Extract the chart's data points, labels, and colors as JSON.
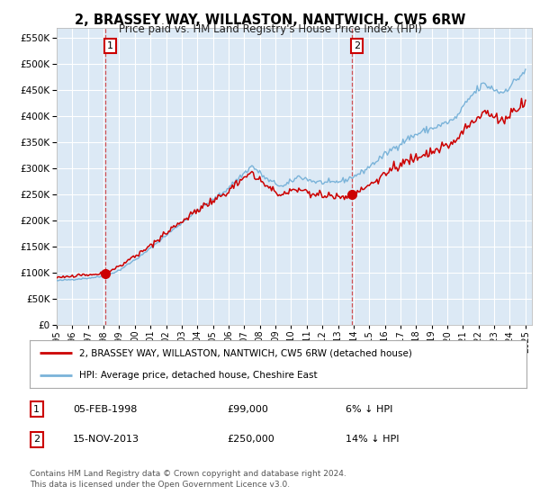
{
  "title": "2, BRASSEY WAY, WILLASTON, NANTWICH, CW5 6RW",
  "subtitle": "Price paid vs. HM Land Registry's House Price Index (HPI)",
  "title_fontsize": 10.5,
  "subtitle_fontsize": 8.5,
  "bg_color": "#dce9f5",
  "grid_color": "#ffffff",
  "sale1_date": "1998-02-05",
  "sale1_price": 99000,
  "sale1_label": "1",
  "sale2_date": "2013-11-15",
  "sale2_price": 250000,
  "sale2_label": "2",
  "legend_line1": "2, BRASSEY WAY, WILLASTON, NANTWICH, CW5 6RW (detached house)",
  "legend_line2": "HPI: Average price, detached house, Cheshire East",
  "table_row1": [
    "1",
    "05-FEB-1998",
    "£99,000",
    "6% ↓ HPI"
  ],
  "table_row2": [
    "2",
    "15-NOV-2013",
    "£250,000",
    "14% ↓ HPI"
  ],
  "footer": "Contains HM Land Registry data © Crown copyright and database right 2024.\nThis data is licensed under the Open Government Licence v3.0.",
  "hpi_color": "#7ab3d9",
  "price_color": "#cc0000",
  "marker_color": "#cc0000",
  "dashed_line_color": "#cc0000",
  "ylim": [
    0,
    570000
  ],
  "yticks": [
    0,
    50000,
    100000,
    150000,
    200000,
    250000,
    300000,
    350000,
    400000,
    450000,
    500000,
    550000
  ],
  "fig_bg_color": "#ffffff"
}
